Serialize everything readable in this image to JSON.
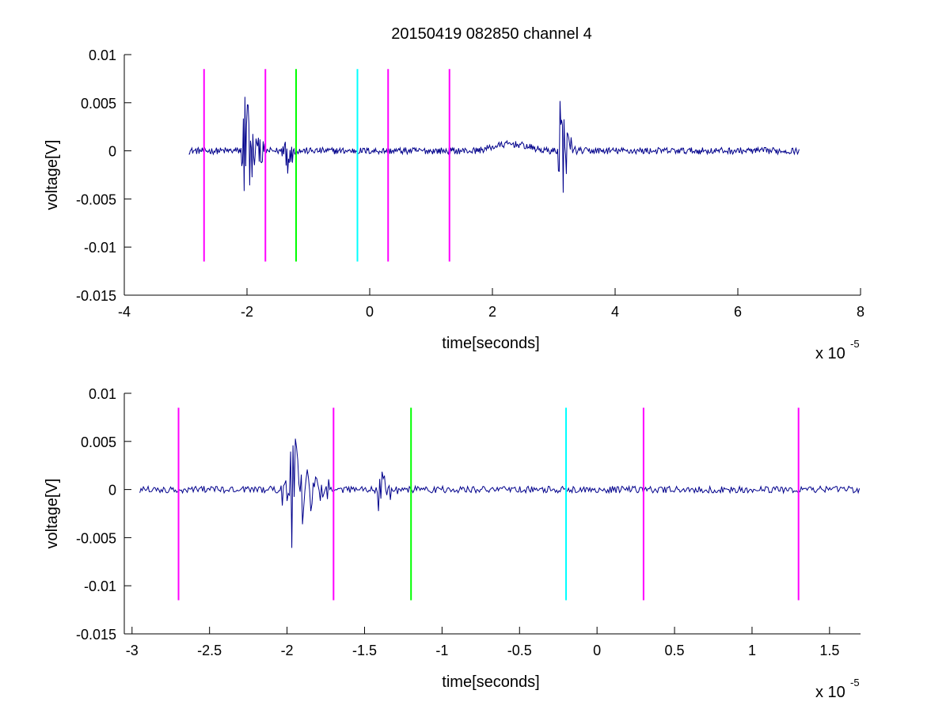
{
  "figure_title": "20150419 082850 channel 4",
  "chart_data": [
    {
      "type": "line",
      "title": "20150419 082850 channel 4",
      "xlabel": "time[seconds]",
      "ylabel": "voltage[V]",
      "x_scale_label": "x 10",
      "x_scale_exponent": "-5",
      "xlim": [
        -4,
        8
      ],
      "ylim": [
        -0.015,
        0.01
      ],
      "xticks": [
        -4,
        -2,
        0,
        2,
        4,
        6,
        8
      ],
      "xtick_labels": [
        "-4",
        "-2",
        "0",
        "2",
        "4",
        "6",
        "8"
      ],
      "yticks": [
        0.01,
        0.005,
        0,
        -0.005,
        -0.01,
        -0.015
      ],
      "ytick_labels": [
        "0.01",
        "0.005",
        "0",
        "-0.005",
        "-0.01",
        "-0.015"
      ],
      "grid": false,
      "signal": {
        "color": "#00008b",
        "x_start": -2.95,
        "x_end": 7.0,
        "bursts": [
          {
            "x": -2.05,
            "amp": 0.0085,
            "width": 0.35
          },
          {
            "x": -1.4,
            "amp": 0.005,
            "width": 0.2
          },
          {
            "x": 3.1,
            "amp": 0.007,
            "width": 0.25
          }
        ],
        "bumps": [
          {
            "x": 2.3,
            "amp": 0.0007,
            "width": 1.3
          }
        ],
        "noise": 0.00035
      },
      "markers": [
        {
          "x": -2.7,
          "color": "#ff00ff",
          "y0": -0.0115,
          "y1": 0.0085
        },
        {
          "x": -1.7,
          "color": "#ff00ff",
          "y0": -0.0115,
          "y1": 0.0085
        },
        {
          "x": -1.2,
          "color": "#00ff00",
          "y0": -0.0115,
          "y1": 0.0085
        },
        {
          "x": -0.2,
          "color": "#00ffff",
          "y0": -0.0115,
          "y1": 0.0085
        },
        {
          "x": 0.3,
          "color": "#ff00ff",
          "y0": -0.0115,
          "y1": 0.0085
        },
        {
          "x": 1.3,
          "color": "#ff00ff",
          "y0": -0.0115,
          "y1": 0.0085
        }
      ]
    },
    {
      "type": "line",
      "title": "",
      "xlabel": "time[seconds]",
      "ylabel": "voltage[V]",
      "x_scale_label": "x 10",
      "x_scale_exponent": "-5",
      "xlim": [
        -3.05,
        1.7
      ],
      "ylim": [
        -0.015,
        0.01
      ],
      "xticks": [
        -3,
        -2.5,
        -2,
        -1.5,
        -1,
        -0.5,
        0,
        0.5,
        1,
        1.5
      ],
      "xtick_labels": [
        "-3",
        "-2.5",
        "-2",
        "-1.5",
        "-1",
        "-0.5",
        "0",
        "0.5",
        "1",
        "1.5"
      ],
      "yticks": [
        0.01,
        0.005,
        0,
        -0.005,
        -0.01,
        -0.015
      ],
      "ytick_labels": [
        "0.01",
        "0.005",
        "0",
        "-0.005",
        "-0.01",
        "-0.015"
      ],
      "grid": false,
      "signal": {
        "color": "#00008b",
        "x_start": -2.95,
        "x_end": 1.7,
        "bursts": [
          {
            "x": -2.0,
            "amp": 0.0085,
            "width": 0.28
          },
          {
            "x": -1.42,
            "amp": 0.005,
            "width": 0.15
          }
        ],
        "bumps": [],
        "noise": 0.00035
      },
      "markers": [
        {
          "x": -2.7,
          "color": "#ff00ff",
          "y0": -0.0115,
          "y1": 0.0085
        },
        {
          "x": -1.7,
          "color": "#ff00ff",
          "y0": -0.0115,
          "y1": 0.0085
        },
        {
          "x": -1.2,
          "color": "#00ff00",
          "y0": -0.0115,
          "y1": 0.0085
        },
        {
          "x": -0.2,
          "color": "#00ffff",
          "y0": -0.0115,
          "y1": 0.0085
        },
        {
          "x": 0.3,
          "color": "#ff00ff",
          "y0": -0.0115,
          "y1": 0.0085
        },
        {
          "x": 1.3,
          "color": "#ff00ff",
          "y0": -0.0115,
          "y1": 0.0085
        }
      ]
    }
  ]
}
